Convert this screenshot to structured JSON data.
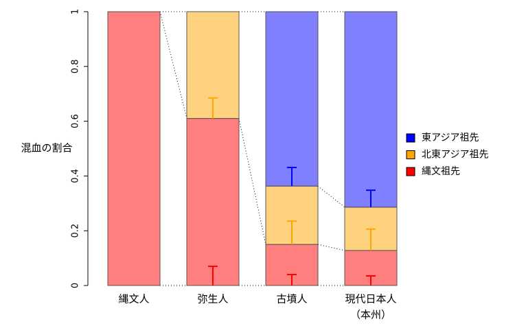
{
  "chart_data": {
    "type": "stacked-bar",
    "y_label": "混血の割合",
    "categories": [
      "縄文人",
      "弥生人",
      "古墳人",
      "現代日本人"
    ],
    "category_notes": [
      null,
      null,
      null,
      "（本州）"
    ],
    "series": [
      {
        "name": "縄文祖先",
        "color": "#ff0000",
        "values": [
          1,
          0.61,
          0.15,
          0.128
        ],
        "errors": [
          null,
          0.07,
          0.04,
          0.035
        ]
      },
      {
        "name": "北東アジア祖先",
        "color": "#ffa500",
        "values": [
          0,
          0.39,
          0.213,
          0.158
        ],
        "errors": [
          null,
          0.075,
          0.085,
          0.078
        ]
      },
      {
        "name": "東アジア祖先",
        "color": "#0000ff",
        "values": [
          0,
          0,
          0.637,
          0.714
        ],
        "errors": [
          null,
          null,
          0.068,
          0.062
        ]
      }
    ],
    "ylim": [
      0,
      1
    ],
    "yticks": [
      0,
      0.2,
      0.4,
      0.6,
      0.8,
      1
    ],
    "legend": "right"
  }
}
